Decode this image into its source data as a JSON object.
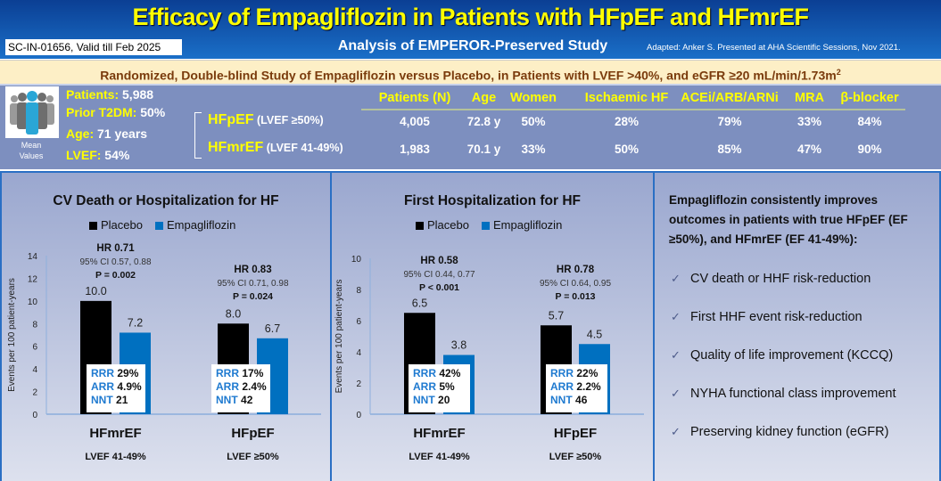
{
  "header": {
    "title": "Efficacy of Empagliflozin in Patients with HFpEF and HFmrEF",
    "code": "SC-IN-01656, Valid till Feb 2025",
    "subtitle": "Analysis of EMPEROR-Preserved Study",
    "adapted": "Adapted: Anker S. Presented at AHA Scientific Sessions, Nov 2021."
  },
  "band": {
    "text": "Randomized, Double-blind Study of Empagliflozin versus Placebo, in Patients with LVEF >40%, and eGFR ≥20 mL/min/1.73m",
    "sup": "2"
  },
  "overall": {
    "icon": "people-icon",
    "mean_label": "Mean Values",
    "items": [
      {
        "k": "Patients:",
        "v": " 5,988"
      },
      {
        "k": "Prior T2DM:",
        "v": " 50%"
      },
      {
        "k": "Age:",
        "v": " 71 years"
      },
      {
        "k": "LVEF:",
        "v": " 54%"
      }
    ]
  },
  "table": {
    "headers": [
      "Patients (N)",
      "Age",
      "Women",
      "Ischaemic HF",
      "ACEi/ARB/ARNi",
      "MRA",
      "β-blocker"
    ],
    "rows": [
      {
        "name": "HFpEF",
        "sub": " (LVEF ≥50%)",
        "cells": [
          "4,005",
          "72.8 y",
          "50%",
          "28%",
          "79%",
          "33%",
          "84%"
        ]
      },
      {
        "name": "HFmrEF",
        "sub": " (LVEF 41-49%)",
        "cells": [
          "1,983",
          "70.1 y",
          "33%",
          "50%",
          "85%",
          "47%",
          "90%"
        ]
      }
    ]
  },
  "colors": {
    "placebo": "#000000",
    "empagliflozin": "#0070c0",
    "accent": "#ffff00"
  },
  "chart_data": [
    {
      "type": "bar",
      "title": "CV Death or Hospitalization for HF",
      "ylabel": "Events per 100 patient-years",
      "ylim": [
        0,
        14
      ],
      "yticks": [
        0,
        2,
        4,
        6,
        8,
        10,
        12,
        14
      ],
      "legend": "top",
      "categories": [
        "HFmrEF",
        "HFpEF"
      ],
      "category_sub": [
        "LVEF 41-49%",
        "LVEF ≥50%"
      ],
      "series": [
        {
          "name": "Placebo",
          "values": [
            10.0,
            8.0
          ],
          "labels": [
            "10.0",
            "8.0"
          ]
        },
        {
          "name": "Empagliflozin",
          "values": [
            7.2,
            6.7
          ],
          "labels": [
            "7.2",
            "6.7"
          ]
        }
      ],
      "annotations": [
        {
          "hr": "HR 0.71",
          "ci": "95% CI 0.57, 0.88",
          "p": "P = 0.002",
          "rrr": "29%",
          "arr": "4.9%",
          "nnt": "21"
        },
        {
          "hr": "HR 0.83",
          "ci": "95% CI 0.71, 0.98",
          "p": "P = 0.024",
          "rrr": "17%",
          "arr": "2.4%",
          "nnt": "42"
        }
      ]
    },
    {
      "type": "bar",
      "title": "First Hospitalization for HF",
      "ylabel": "Events per 100 patient-years",
      "ylim": [
        0,
        10
      ],
      "yticks": [
        0,
        2,
        4,
        6,
        8,
        10
      ],
      "legend": "top",
      "categories": [
        "HFmrEF",
        "HFpEF"
      ],
      "category_sub": [
        "LVEF 41-49%",
        "LVEF ≥50%"
      ],
      "series": [
        {
          "name": "Placebo",
          "values": [
            6.5,
            5.7
          ],
          "labels": [
            "6.5",
            "5.7"
          ]
        },
        {
          "name": "Empagliflozin",
          "values": [
            3.8,
            4.5
          ],
          "labels": [
            "3.8",
            "4.5"
          ]
        }
      ],
      "annotations": [
        {
          "hr": "HR 0.58",
          "ci": "95% CI 0.44, 0.77",
          "p": "P < 0.001",
          "rrr": "42%",
          "arr": "5%",
          "nnt": "20"
        },
        {
          "hr": "HR 0.78",
          "ci": "95% CI 0.64, 0.95",
          "p": "P = 0.013",
          "rrr": "22%",
          "arr": "2.2%",
          "nnt": "46"
        }
      ]
    }
  ],
  "stat_labels": {
    "rrr": "RRR",
    "arr": "ARR",
    "nnt": "NNT"
  },
  "summary": {
    "heading": "Empagliflozin consistently improves outcomes in patients with true HFpEF (EF ≥50%), and HFmrEF (EF 41-49%):",
    "check": "✓",
    "items": [
      "CV death or HHF risk-reduction",
      "First HHF event risk-reduction",
      "Quality of life improvement (KCCQ)",
      "NYHA functional class improvement",
      "Preserving kidney function (eGFR)"
    ]
  }
}
